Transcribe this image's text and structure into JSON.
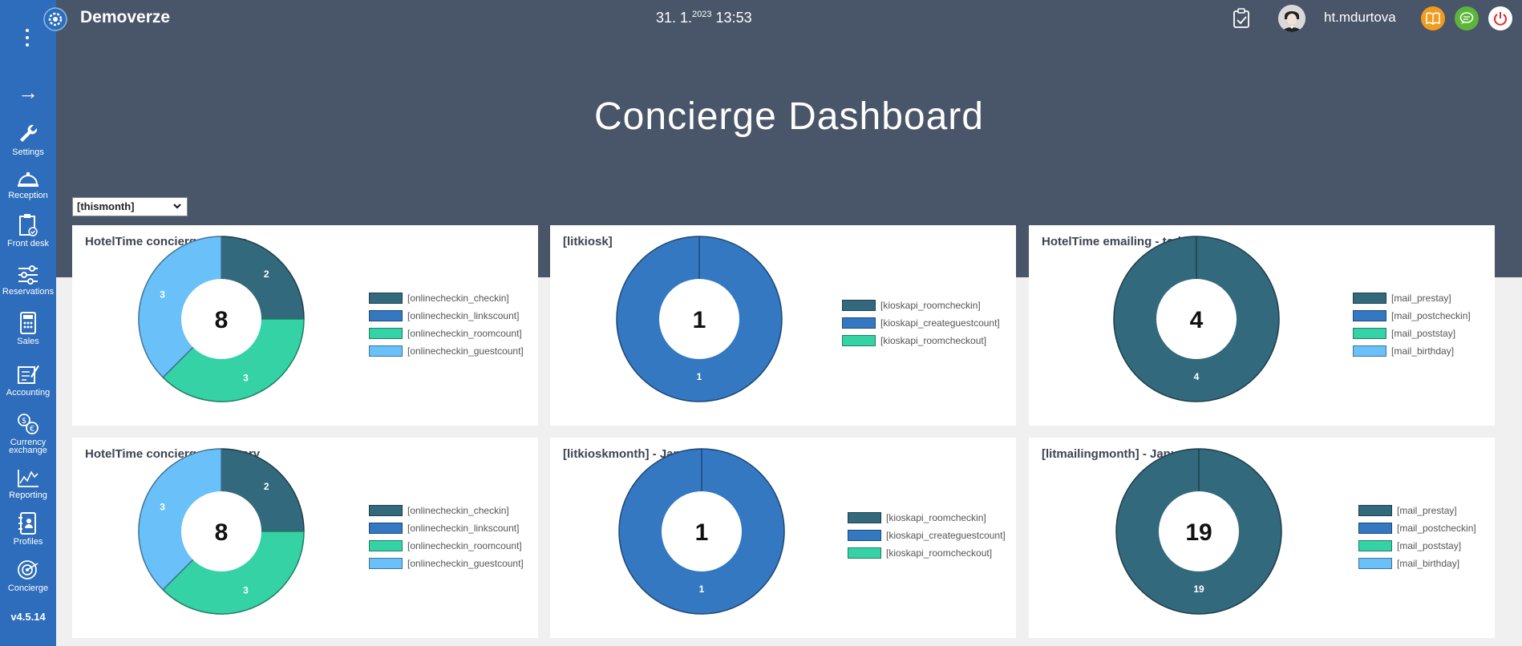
{
  "app": {
    "name": "Demoverze",
    "date_main": "31. 1.",
    "date_year": "2023",
    "time": "13:53",
    "username": "ht.mdurtova",
    "page_title": "Concierge Dashboard",
    "version": "v4.5.14"
  },
  "sidebar": {
    "items": [
      {
        "label": "Settings"
      },
      {
        "label": "Reception"
      },
      {
        "label": "Front desk"
      },
      {
        "label": "Reservations"
      },
      {
        "label": "Sales"
      },
      {
        "label": "Accounting"
      },
      {
        "label": "Currency exchange"
      },
      {
        "label": "Reporting"
      },
      {
        "label": "Profiles"
      },
      {
        "label": "Concierge"
      }
    ]
  },
  "filter": {
    "selected": "[thismonth]"
  },
  "colors": {
    "dark_teal": "#33697d",
    "blue": "#3478c2",
    "green": "#35d2a6",
    "light_blue": "#6ac0f8"
  },
  "chart_data": [
    {
      "type": "pie",
      "title": "HotelTime concierge - today",
      "center_label": "8",
      "categories": [
        "[onlinecheckin_checkin]",
        "[onlinecheckin_linkscount]",
        "[onlinecheckin_roomcount]",
        "[onlinecheckin_guestcount]"
      ],
      "values": [
        2,
        0,
        3,
        3
      ],
      "colors": [
        "#33697d",
        "#3478c2",
        "#35d2a6",
        "#6ac0f8"
      ]
    },
    {
      "type": "pie",
      "title": "[litkiosk]",
      "center_label": "1",
      "categories": [
        "[kioskapi_roomcheckin]",
        "[kioskapi_createguestcount]",
        "[kioskapi_roomcheckout]"
      ],
      "values": [
        0,
        1,
        0
      ],
      "colors": [
        "#33697d",
        "#3478c2",
        "#35d2a6"
      ]
    },
    {
      "type": "pie",
      "title": "HotelTime emailing - today",
      "center_label": "4",
      "categories": [
        "[mail_prestay]",
        "[mail_postcheckin]",
        "[mail_poststay]",
        "[mail_birthday]"
      ],
      "values": [
        4,
        0,
        0,
        0
      ],
      "colors": [
        "#33697d",
        "#3478c2",
        "#35d2a6",
        "#6ac0f8"
      ]
    },
    {
      "type": "pie",
      "title": "HotelTime concierge - January",
      "center_label": "8",
      "categories": [
        "[onlinecheckin_checkin]",
        "[onlinecheckin_linkscount]",
        "[onlinecheckin_roomcount]",
        "[onlinecheckin_guestcount]"
      ],
      "values": [
        2,
        0,
        3,
        3
      ],
      "colors": [
        "#33697d",
        "#3478c2",
        "#35d2a6",
        "#6ac0f8"
      ]
    },
    {
      "type": "pie",
      "title": "[litkioskmonth] - January",
      "center_label": "1",
      "categories": [
        "[kioskapi_roomcheckin]",
        "[kioskapi_createguestcount]",
        "[kioskapi_roomcheckout]"
      ],
      "values": [
        0,
        1,
        0
      ],
      "colors": [
        "#33697d",
        "#3478c2",
        "#35d2a6"
      ]
    },
    {
      "type": "pie",
      "title": "[litmailingmonth] - January",
      "center_label": "19",
      "categories": [
        "[mail_prestay]",
        "[mail_postcheckin]",
        "[mail_poststay]",
        "[mail_birthday]"
      ],
      "values": [
        19,
        0,
        0,
        0
      ],
      "colors": [
        "#33697d",
        "#3478c2",
        "#35d2a6",
        "#6ac0f8"
      ]
    }
  ]
}
